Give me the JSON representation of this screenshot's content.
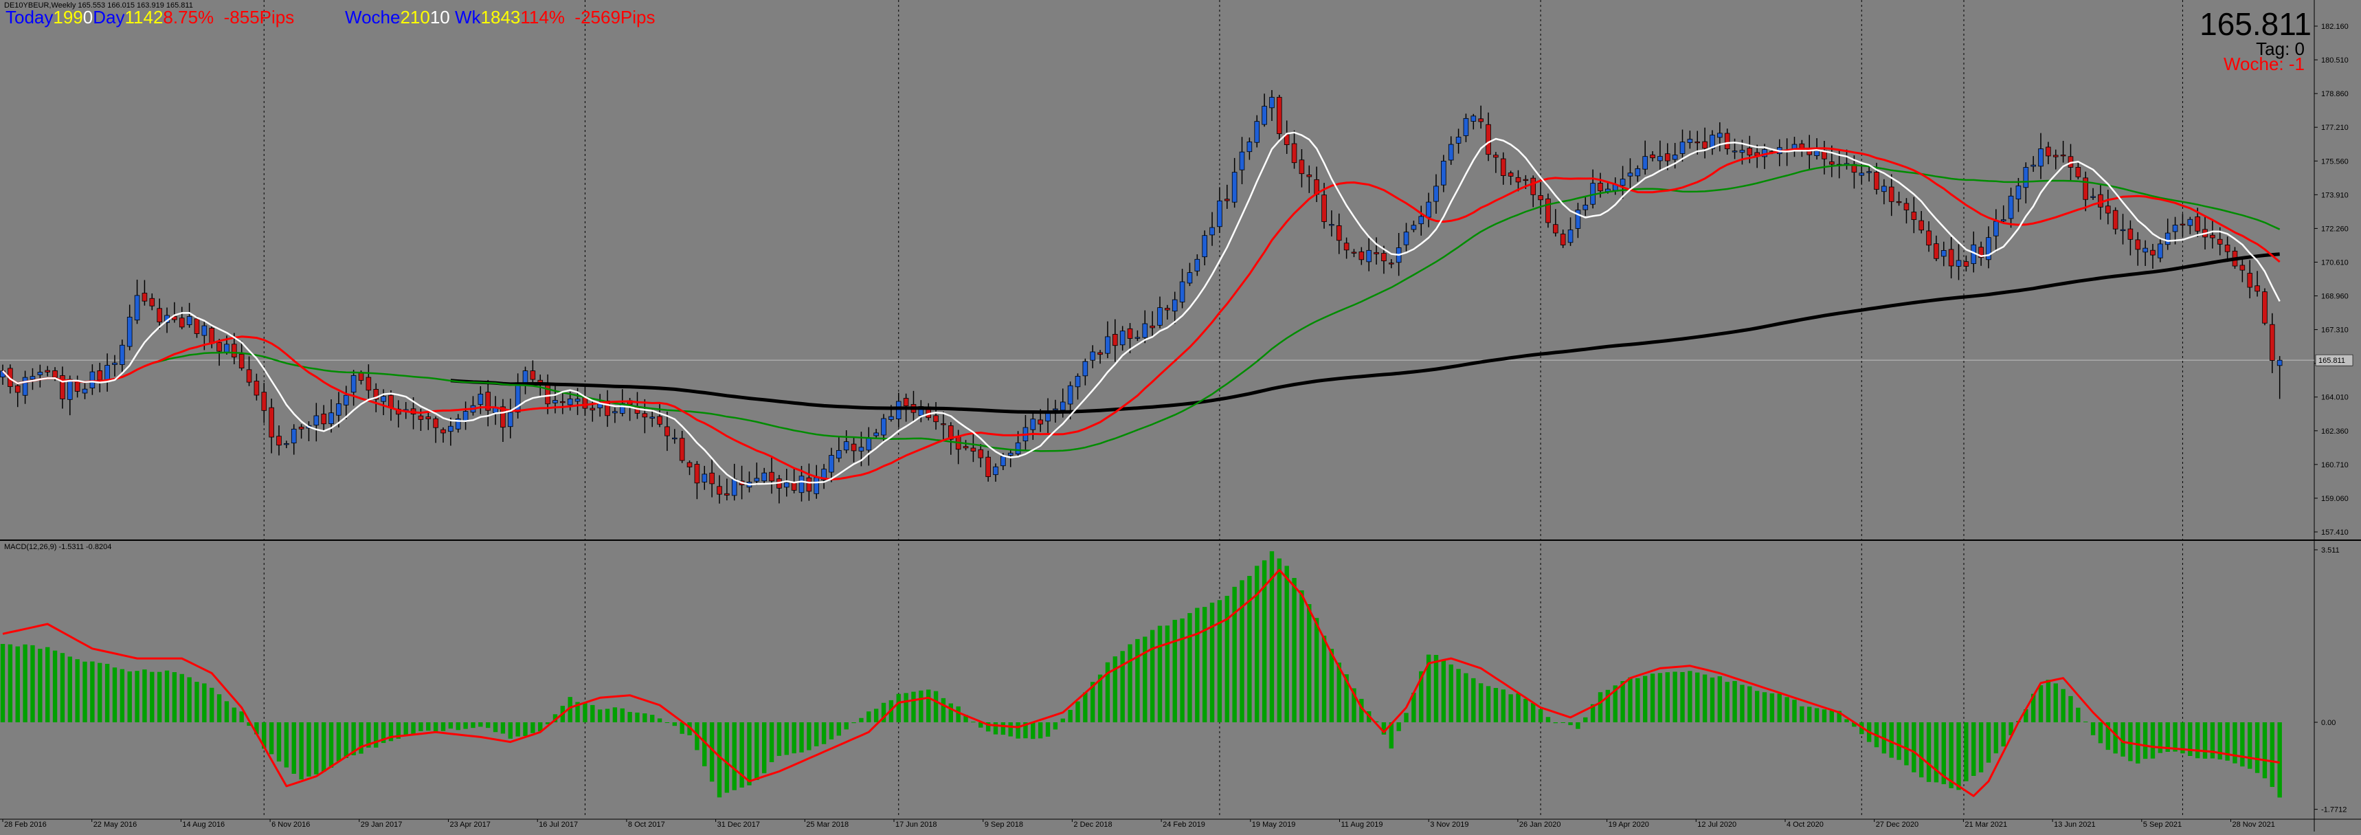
{
  "symbol_header": {
    "symbol": "DE10YBEUR,Weekly",
    "ohlc": "165.553 166.015 163.919 165.811"
  },
  "hud": {
    "today_label": "Today",
    "today_a": "199",
    "today_b": "0",
    "day_label": "Day",
    "day_value": "1142",
    "day_pct": "8.75%",
    "day_pips": "-855",
    "day_pips_suffix": "Pips",
    "woche_label": "Woche",
    "woche_a": "210",
    "woche_b": "10",
    "wk_label": "Wk",
    "wk_value": "1843",
    "wk_pct": "114%",
    "wk_pips": "-2569",
    "wk_pips_suffix": "Pips",
    "price": "165.811",
    "tag_text": "Tag:  0",
    "woche_text": "Woche: -1"
  },
  "colors": {
    "background": "#808080",
    "bull_candle": "#1e5fd6",
    "bear_candle": "#cc1414",
    "wick": "#000000",
    "ma_white": "#ffffff",
    "ma_red": "#ff0000",
    "ma_green": "#008c00",
    "ma_black": "#000000",
    "macd_hist": "#00a000",
    "macd_signal": "#ff0000",
    "grid": "#000000",
    "hud_blue": "#0000ff",
    "hud_white": "#ffffff",
    "hud_yellow": "#ffff00",
    "hud_red": "#ff0000"
  },
  "chart_data": [
    {
      "type": "candlestick",
      "title": "DE10YBEUR,Weekly",
      "x_tick_labels": [
        "28 Feb 2016",
        "22 May 2016",
        "14 Aug 2016",
        "6 Nov 2016",
        "29 Jan 2017",
        "23 Apr 2017",
        "16 Jul 2017",
        "8 Oct 2017",
        "31 Dec 2017",
        "25 Mar 2018",
        "17 Jun 2018",
        "9 Sep 2018",
        "2 Dec 2018",
        "24 Feb 2019",
        "19 May 2019",
        "11 Aug 2019",
        "3 Nov 2019",
        "26 Jan 2020",
        "19 Apr 2020",
        "12 Jul 2020",
        "4 Oct 2020",
        "27 Dec 2020",
        "21 Mar 2021",
        "13 Jun 2021",
        "5 Sep 2021",
        "28 Nov 2021"
      ],
      "y_tick_labels": [
        "182.160",
        "180.510",
        "178.860",
        "177.210",
        "175.560",
        "173.910",
        "172.260",
        "170.610",
        "168.960",
        "167.310",
        "165.660",
        "164.010",
        "162.360",
        "160.710",
        "159.060",
        "157.410"
      ],
      "ylim": [
        157.41,
        182.16
      ],
      "current_price_label": "165.811",
      "close_keypoints": [
        [
          0,
          165.2
        ],
        [
          2,
          164.2
        ],
        [
          5,
          165.2
        ],
        [
          8,
          164.3
        ],
        [
          12,
          164.8
        ],
        [
          15,
          166.1
        ],
        [
          18,
          168.6
        ],
        [
          22,
          167.9
        ],
        [
          26,
          167.5
        ],
        [
          30,
          166.4
        ],
        [
          34,
          163.8
        ],
        [
          37,
          161.8
        ],
        [
          41,
          162.8
        ],
        [
          44,
          162.9
        ],
        [
          47,
          165.1
        ],
        [
          52,
          163.4
        ],
        [
          56,
          163.0
        ],
        [
          60,
          162.5
        ],
        [
          64,
          164.2
        ],
        [
          67,
          162.8
        ],
        [
          70,
          165.2
        ],
        [
          73,
          163.9
        ],
        [
          76,
          163.8
        ],
        [
          80,
          163.6
        ],
        [
          84,
          163.4
        ],
        [
          88,
          162.9
        ],
        [
          92,
          160.5
        ],
        [
          96,
          159.3
        ],
        [
          100,
          160.1
        ],
        [
          104,
          160.0
        ],
        [
          108,
          159.6
        ],
        [
          112,
          161.2
        ],
        [
          116,
          162.0
        ],
        [
          120,
          163.4
        ],
        [
          124,
          163.1
        ],
        [
          128,
          161.6
        ],
        [
          132,
          160.4
        ],
        [
          136,
          162.1
        ],
        [
          140,
          163.2
        ],
        [
          144,
          164.9
        ],
        [
          148,
          166.8
        ],
        [
          152,
          167.1
        ],
        [
          156,
          168.4
        ],
        [
          160,
          170.7
        ],
        [
          164,
          174.0
        ],
        [
          167,
          176.8
        ],
        [
          170,
          178.6
        ],
        [
          172,
          176.0
        ],
        [
          175,
          174.5
        ],
        [
          178,
          172.1
        ],
        [
          181,
          171.3
        ],
        [
          185,
          170.6
        ],
        [
          188,
          171.8
        ],
        [
          191,
          173.8
        ],
        [
          194,
          176.3
        ],
        [
          197,
          178.1
        ],
        [
          200,
          175.3
        ],
        [
          203,
          174.9
        ],
        [
          206,
          173.5
        ],
        [
          209,
          171.9
        ],
        [
          212,
          173.8
        ],
        [
          215,
          174.5
        ],
        [
          218,
          175.0
        ],
        [
          222,
          175.7
        ],
        [
          226,
          176.4
        ],
        [
          230,
          176.7
        ],
        [
          234,
          176.1
        ],
        [
          238,
          175.9
        ],
        [
          242,
          176.2
        ],
        [
          246,
          175.1
        ],
        [
          250,
          174.7
        ],
        [
          254,
          173.2
        ],
        [
          258,
          171.4
        ],
        [
          262,
          170.6
        ],
        [
          266,
          171.5
        ],
        [
          270,
          174.7
        ],
        [
          273,
          176.3
        ],
        [
          276,
          175.6
        ],
        [
          279,
          173.8
        ],
        [
          282,
          173.0
        ],
        [
          285,
          171.7
        ],
        [
          288,
          171.4
        ],
        [
          291,
          172.6
        ],
        [
          294,
          172.1
        ],
        [
          297,
          171.1
        ],
        [
          300,
          170.0
        ],
        [
          302,
          169.5
        ],
        [
          304,
          165.8
        ],
        [
          305,
          165.811
        ]
      ],
      "series": [
        {
          "name": "",
          "color": "white",
          "period_weeks": 8,
          "type": "sma"
        },
        {
          "name": "",
          "color": "red",
          "period_weeks": 21,
          "type": "sma"
        },
        {
          "name": "",
          "color": "green",
          "period_weeks": 55,
          "type": "sma"
        },
        {
          "name": "",
          "color": "black",
          "period_weeks": 200,
          "type": "sma"
        }
      ]
    },
    {
      "type": "bar",
      "title": "MACD(12,26,9) -1.5311 -0.8204",
      "y_tick_labels": [
        "3.511",
        "0.00",
        "-1.7712"
      ],
      "ylim": [
        -1.7712,
        3.511
      ],
      "histogram_keypoints": [
        [
          0,
          1.6
        ],
        [
          6,
          1.5
        ],
        [
          12,
          1.2
        ],
        [
          18,
          1.05
        ],
        [
          24,
          1.0
        ],
        [
          28,
          0.7
        ],
        [
          32,
          0.2
        ],
        [
          35,
          -0.5
        ],
        [
          40,
          -1.2
        ],
        [
          44,
          -0.9
        ],
        [
          48,
          -0.6
        ],
        [
          52,
          -0.4
        ],
        [
          56,
          -0.2
        ],
        [
          60,
          -0.15
        ],
        [
          64,
          -0.1
        ],
        [
          68,
          -0.3
        ],
        [
          72,
          -0.2
        ],
        [
          76,
          0.5
        ],
        [
          80,
          0.3
        ],
        [
          84,
          0.25
        ],
        [
          88,
          0.1
        ],
        [
          92,
          -0.3
        ],
        [
          96,
          -1.5
        ],
        [
          100,
          -1.3
        ],
        [
          104,
          -0.7
        ],
        [
          108,
          -0.6
        ],
        [
          112,
          -0.3
        ],
        [
          116,
          0.2
        ],
        [
          120,
          0.55
        ],
        [
          124,
          0.7
        ],
        [
          128,
          0.3
        ],
        [
          132,
          -0.2
        ],
        [
          136,
          -0.35
        ],
        [
          140,
          -0.3
        ],
        [
          144,
          0.4
        ],
        [
          148,
          1.2
        ],
        [
          152,
          1.7
        ],
        [
          156,
          2.0
        ],
        [
          160,
          2.3
        ],
        [
          164,
          2.6
        ],
        [
          167,
          3.0
        ],
        [
          170,
          3.45
        ],
        [
          172,
          3.2
        ],
        [
          175,
          2.4
        ],
        [
          178,
          1.5
        ],
        [
          181,
          0.7
        ],
        [
          184,
          0.0
        ],
        [
          186,
          -0.5
        ],
        [
          188,
          0.2
        ],
        [
          191,
          1.4
        ],
        [
          194,
          1.2
        ],
        [
          197,
          0.9
        ],
        [
          200,
          0.7
        ],
        [
          204,
          0.5
        ],
        [
          208,
          0.0
        ],
        [
          211,
          -0.1
        ],
        [
          214,
          0.6
        ],
        [
          218,
          0.9
        ],
        [
          222,
          1.0
        ],
        [
          226,
          1.05
        ],
        [
          230,
          0.9
        ],
        [
          234,
          0.7
        ],
        [
          238,
          0.55
        ],
        [
          242,
          0.3
        ],
        [
          246,
          0.2
        ],
        [
          250,
          -0.4
        ],
        [
          254,
          -0.8
        ],
        [
          258,
          -1.2
        ],
        [
          262,
          -1.35
        ],
        [
          265,
          -1.0
        ],
        [
          268,
          -0.5
        ],
        [
          270,
          0.0
        ],
        [
          272,
          0.6
        ],
        [
          274,
          0.9
        ],
        [
          276,
          0.7
        ],
        [
          278,
          0.3
        ],
        [
          280,
          -0.3
        ],
        [
          282,
          -0.6
        ],
        [
          286,
          -0.8
        ],
        [
          290,
          -0.6
        ],
        [
          294,
          -0.7
        ],
        [
          298,
          -0.8
        ],
        [
          302,
          -1.0
        ],
        [
          305,
          -1.53
        ]
      ],
      "signal_keypoints": [
        [
          0,
          1.8
        ],
        [
          6,
          2.0
        ],
        [
          12,
          1.5
        ],
        [
          18,
          1.3
        ],
        [
          24,
          1.3
        ],
        [
          28,
          1.0
        ],
        [
          32,
          0.3
        ],
        [
          35,
          -0.5
        ],
        [
          38,
          -1.3
        ],
        [
          42,
          -1.1
        ],
        [
          48,
          -0.5
        ],
        [
          52,
          -0.3
        ],
        [
          58,
          -0.2
        ],
        [
          64,
          -0.3
        ],
        [
          68,
          -0.4
        ],
        [
          72,
          -0.2
        ],
        [
          76,
          0.3
        ],
        [
          80,
          0.5
        ],
        [
          84,
          0.55
        ],
        [
          88,
          0.35
        ],
        [
          92,
          -0.1
        ],
        [
          96,
          -0.7
        ],
        [
          100,
          -1.2
        ],
        [
          104,
          -1.0
        ],
        [
          110,
          -0.6
        ],
        [
          116,
          -0.2
        ],
        [
          120,
          0.4
        ],
        [
          124,
          0.5
        ],
        [
          128,
          0.2
        ],
        [
          132,
          -0.05
        ],
        [
          136,
          -0.1
        ],
        [
          142,
          0.2
        ],
        [
          148,
          1.0
        ],
        [
          154,
          1.5
        ],
        [
          160,
          1.8
        ],
        [
          164,
          2.1
        ],
        [
          168,
          2.6
        ],
        [
          171,
          3.1
        ],
        [
          174,
          2.6
        ],
        [
          178,
          1.4
        ],
        [
          182,
          0.3
        ],
        [
          185,
          -0.2
        ],
        [
          188,
          0.3
        ],
        [
          191,
          1.2
        ],
        [
          194,
          1.3
        ],
        [
          198,
          1.1
        ],
        [
          202,
          0.7
        ],
        [
          206,
          0.3
        ],
        [
          210,
          0.1
        ],
        [
          214,
          0.4
        ],
        [
          218,
          0.9
        ],
        [
          222,
          1.1
        ],
        [
          226,
          1.15
        ],
        [
          230,
          1.0
        ],
        [
          234,
          0.8
        ],
        [
          238,
          0.6
        ],
        [
          242,
          0.4
        ],
        [
          246,
          0.2
        ],
        [
          250,
          -0.2
        ],
        [
          256,
          -0.6
        ],
        [
          260,
          -1.1
        ],
        [
          264,
          -1.5
        ],
        [
          266,
          -1.2
        ],
        [
          270,
          0.0
        ],
        [
          273,
          0.8
        ],
        [
          276,
          0.9
        ],
        [
          280,
          0.2
        ],
        [
          284,
          -0.4
        ],
        [
          288,
          -0.5
        ],
        [
          292,
          -0.55
        ],
        [
          296,
          -0.6
        ],
        [
          300,
          -0.7
        ],
        [
          305,
          -0.82
        ]
      ]
    }
  ]
}
